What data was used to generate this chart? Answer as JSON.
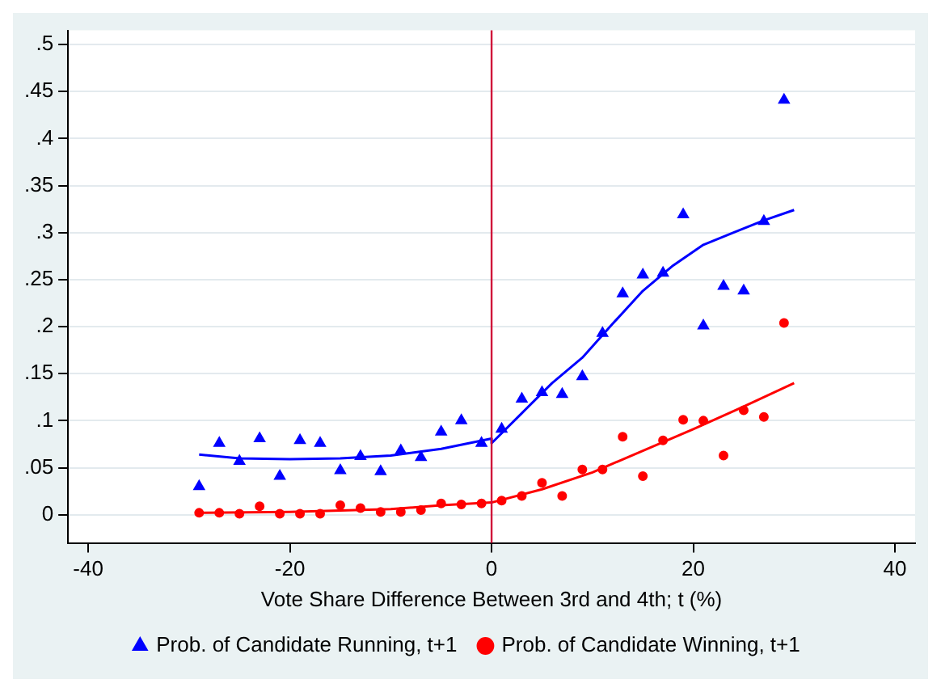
{
  "chart_data": {
    "type": "scatter",
    "xlabel": "Vote Share Difference Between 3rd and 4th; t (%)",
    "xlim": [
      -42,
      42
    ],
    "xticks": [
      -40,
      -20,
      0,
      20,
      40
    ],
    "ylim": [
      -0.03,
      0.515
    ],
    "yticks": [
      0,
      {
        "value": 0.05,
        "label": ".05"
      },
      {
        "value": 0.1,
        "label": ".1"
      },
      {
        "value": 0.15,
        "label": ".15"
      },
      {
        "value": 0.2,
        "label": ".2"
      },
      {
        "value": 0.25,
        "label": ".25"
      },
      {
        "value": 0.3,
        "label": ".3"
      },
      {
        "value": 0.35,
        "label": ".35"
      },
      {
        "value": 0.4,
        "label": ".4"
      },
      {
        "value": 0.45,
        "label": ".45"
      },
      {
        "value": 0.5,
        "label": ".5"
      }
    ],
    "grid": "y",
    "legend": "bottom",
    "ref_lines": [
      {
        "axis": "x",
        "value": 0,
        "color": "#d0103a"
      }
    ],
    "x": [
      -29,
      -27,
      -25,
      -23,
      -21,
      -19,
      -17,
      -15,
      -13,
      -11,
      -9,
      -7,
      -5,
      -3,
      -1,
      1,
      3,
      5,
      7,
      9,
      11,
      13,
      15,
      17,
      19,
      21,
      23,
      25,
      27,
      29
    ],
    "series": [
      {
        "name": "Prob. of Candidate Running, t+1",
        "marker": "triangle",
        "color": "#0000ff",
        "values": [
          0.03,
          0.076,
          0.057,
          0.081,
          0.041,
          0.079,
          0.076,
          0.047,
          0.062,
          0.046,
          0.068,
          0.061,
          0.088,
          0.1,
          0.076,
          0.091,
          0.123,
          0.13,
          0.128,
          0.147,
          0.193,
          0.235,
          0.255,
          0.257,
          0.319,
          0.201,
          0.243,
          0.238,
          0.312,
          0.441
        ]
      },
      {
        "name": "Prob. of Candidate Winning, t+1",
        "marker": "circle",
        "color": "#ff0000",
        "values": [
          0.002,
          0.002,
          0.001,
          0.009,
          0.001,
          0.001,
          0.001,
          0.01,
          0.007,
          0.003,
          0.003,
          0.005,
          0.012,
          0.011,
          0.012,
          0.015,
          0.02,
          0.034,
          0.02,
          0.048,
          0.048,
          0.083,
          0.041,
          0.079,
          0.101,
          0.1,
          0.063,
          0.111,
          0.104,
          0.204
        ]
      },
      {
        "type": "line",
        "marker": "none",
        "color": "#0000ff",
        "x": [
          -29,
          -25,
          -20,
          -15,
          -10,
          -5,
          0,
          0,
          3,
          6,
          9,
          12,
          15,
          18,
          21,
          24,
          27,
          30
        ],
        "values": [
          0.064,
          0.06,
          0.059,
          0.06,
          0.063,
          0.07,
          0.081,
          0.076,
          0.108,
          0.14,
          0.167,
          0.203,
          0.238,
          0.265,
          0.287,
          0.3,
          0.313,
          0.324
        ]
      },
      {
        "type": "line",
        "marker": "none",
        "color": "#ff0000",
        "x": [
          -29,
          -20,
          -10,
          -5,
          0,
          5,
          10,
          15,
          20,
          25,
          30
        ],
        "values": [
          0.002,
          0.003,
          0.006,
          0.01,
          0.013,
          0.027,
          0.045,
          0.068,
          0.091,
          0.115,
          0.14
        ]
      }
    ]
  }
}
